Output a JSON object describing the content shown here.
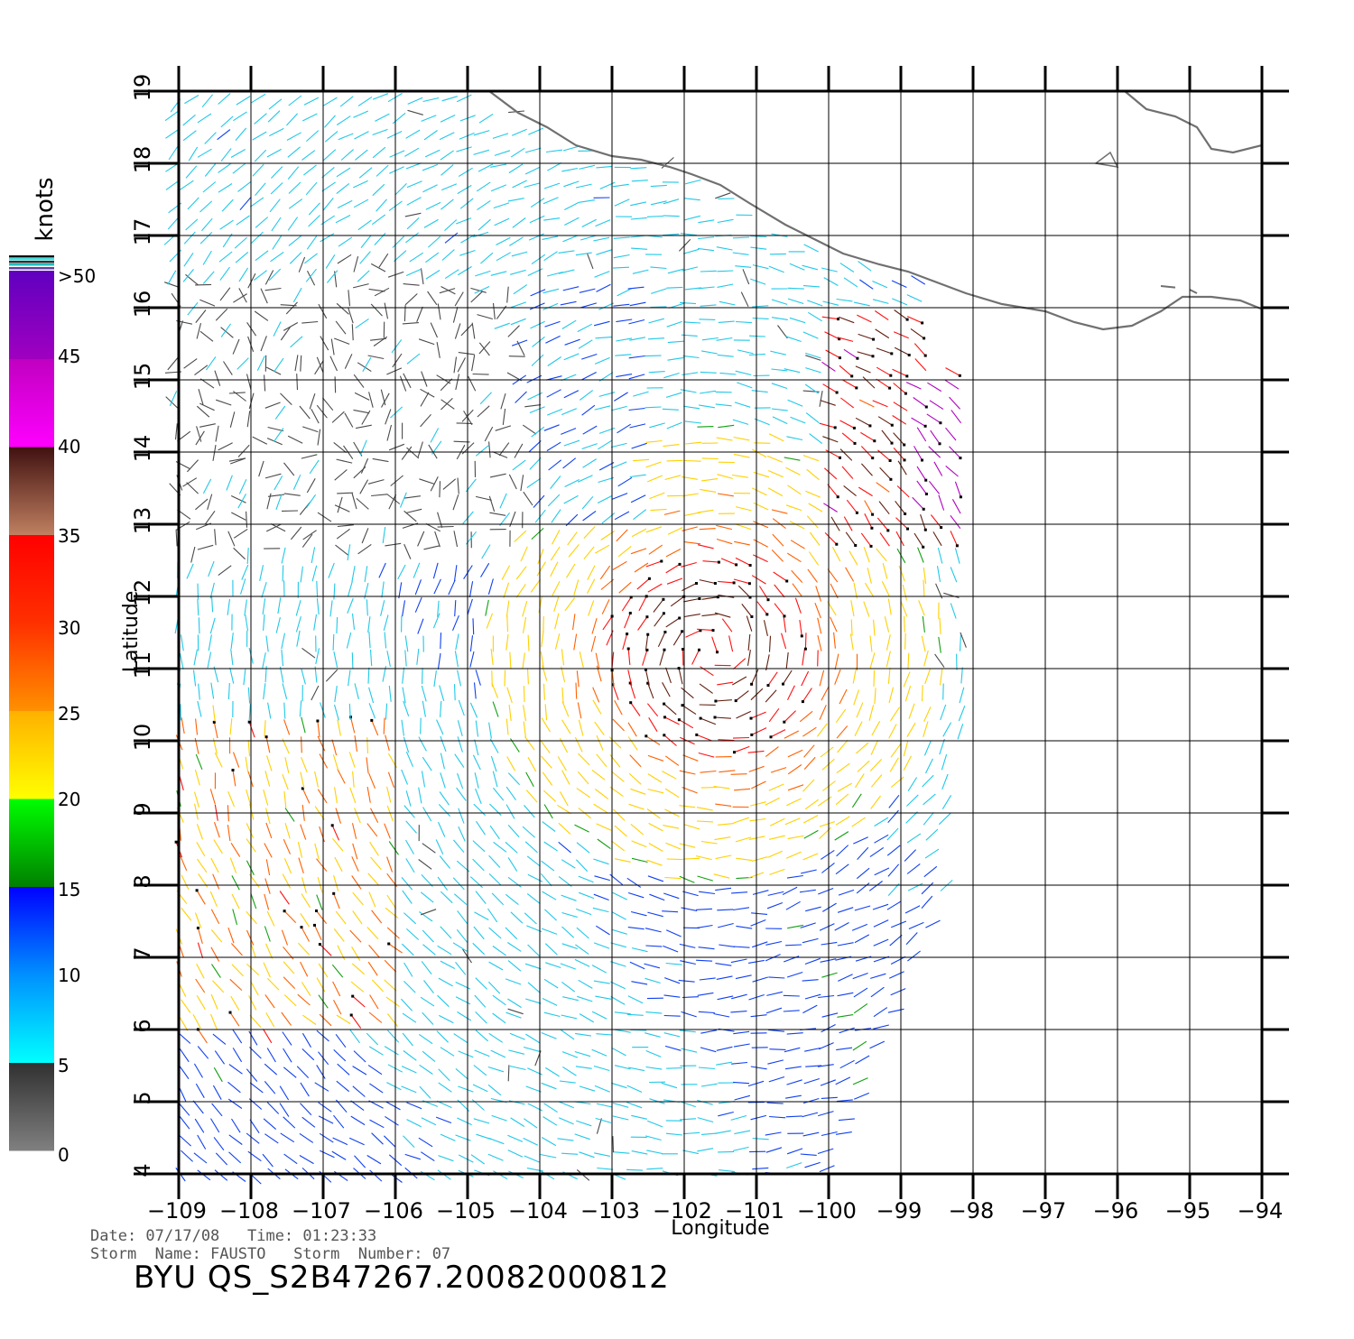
{
  "map": {
    "x_label": "Longitude",
    "y_label": "Latitude",
    "lon_ticks": [
      "−109",
      "−108",
      "−107",
      "−106",
      "−105",
      "−104",
      "−103",
      "−102",
      "−101",
      "−100",
      "−99",
      "−98",
      "−97",
      "−96",
      "−95",
      "−94"
    ],
    "lat_ticks": [
      "4",
      "5",
      "6",
      "7",
      "8",
      "9",
      "10",
      "11",
      "12",
      "13",
      "14",
      "15",
      "16",
      "17",
      "18",
      "19"
    ],
    "lon_range": [
      -109,
      -94
    ],
    "lat_range": [
      4,
      19
    ]
  },
  "legend": {
    "unit": "knots",
    "labels": [
      "0",
      "5",
      "10",
      "15",
      "20",
      "25",
      "30",
      "35",
      "40",
      "45",
      ">50"
    ],
    "colors": {
      "0-5": [
        "#808080",
        "#303030"
      ],
      "5-10": [
        "#00ffff",
        "#0090ff"
      ],
      "10-15": [
        "#0090ff",
        "#0000ff"
      ],
      "15-20": [
        "#008000",
        "#00ff00"
      ],
      "20-25": [
        "#ffff00",
        "#ffb000"
      ],
      "25-30": [
        "#ff9000",
        "#ff3000"
      ],
      "30-35": [
        "#ff3000",
        "#ff0000"
      ],
      "35-40": [
        "#c08060",
        "#401010"
      ],
      "40-45": [
        "#ff00ff",
        "#c000c0"
      ],
      "45-50": [
        "#a000c0",
        "#6000c0"
      ]
    }
  },
  "footer": {
    "line1": "Date: 07/17/08   Time: 01:23:33",
    "line2": "Storm  Name: FAUSTO   Storm  Number: 07",
    "product": "BYU  QS_S2B47267.20082000812"
  }
}
